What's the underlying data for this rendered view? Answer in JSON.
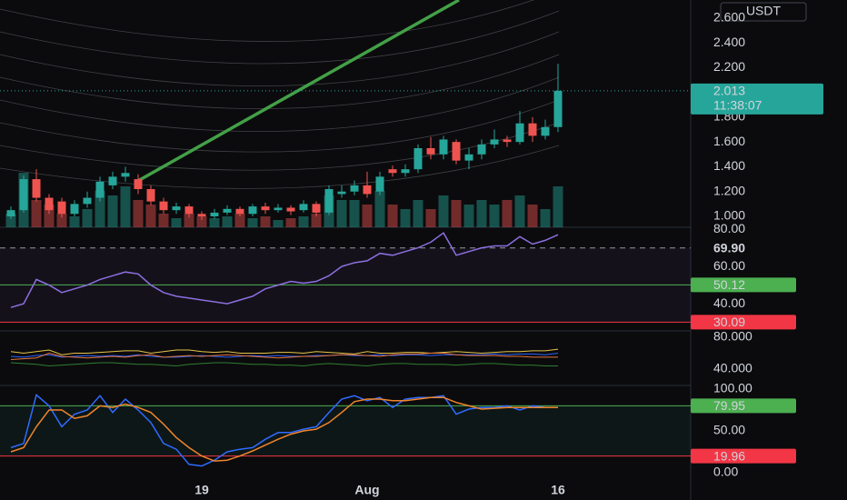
{
  "chart_data": [
    {
      "type": "candlestick",
      "currency": "USDT",
      "categories": [
        null,
        null,
        null,
        null,
        null,
        null,
        null,
        null,
        null,
        null,
        null,
        null,
        null,
        null,
        null,
        "19",
        null,
        null,
        null,
        null,
        null,
        null,
        null,
        null,
        null,
        null,
        null,
        null,
        "Aug",
        null,
        null,
        null,
        null,
        null,
        null,
        null,
        null,
        null,
        null,
        null,
        null,
        null,
        null,
        "16"
      ],
      "open": [
        1.0,
        1.05,
        1.3,
        1.15,
        1.12,
        1.02,
        1.1,
        1.15,
        1.25,
        1.32,
        1.3,
        1.22,
        1.12,
        1.05,
        1.08,
        1.02,
        1.0,
        1.03,
        1.06,
        1.02,
        1.08,
        1.05,
        1.07,
        1.05,
        1.1,
        1.03,
        1.18,
        1.2,
        1.25,
        1.2,
        1.38,
        1.35,
        1.38,
        1.55,
        1.5,
        1.6,
        1.45,
        1.5,
        1.58,
        1.62,
        1.6,
        1.75,
        1.65,
        1.72
      ],
      "high": [
        1.08,
        1.33,
        1.38,
        1.18,
        1.15,
        1.13,
        1.2,
        1.32,
        1.36,
        1.4,
        1.34,
        1.25,
        1.15,
        1.11,
        1.1,
        1.04,
        1.06,
        1.09,
        1.08,
        1.1,
        1.11,
        1.1,
        1.09,
        1.13,
        1.12,
        1.25,
        1.25,
        1.29,
        1.36,
        1.36,
        1.41,
        1.42,
        1.58,
        1.64,
        1.65,
        1.62,
        1.55,
        1.62,
        1.7,
        1.65,
        1.85,
        1.8,
        1.78,
        2.23
      ],
      "low": [
        0.98,
        1.03,
        1.12,
        1.02,
        0.99,
        1.0,
        1.07,
        1.12,
        1.22,
        1.28,
        1.18,
        1.09,
        1.02,
        1.02,
        0.99,
        0.97,
        0.98,
        1.01,
        1.0,
        1.0,
        1.02,
        1.03,
        1.01,
        1.03,
        1.0,
        1.01,
        1.15,
        1.17,
        1.15,
        1.17,
        1.32,
        1.32,
        1.35,
        1.46,
        1.46,
        1.42,
        1.38,
        1.46,
        1.55,
        1.56,
        1.58,
        1.6,
        1.62,
        1.68
      ],
      "close": [
        1.05,
        1.3,
        1.15,
        1.05,
        1.02,
        1.1,
        1.15,
        1.28,
        1.32,
        1.35,
        1.22,
        1.12,
        1.05,
        1.08,
        1.02,
        1.0,
        1.03,
        1.06,
        1.02,
        1.08,
        1.05,
        1.07,
        1.04,
        1.1,
        1.03,
        1.22,
        1.2,
        1.25,
        1.18,
        1.32,
        1.35,
        1.38,
        1.55,
        1.5,
        1.62,
        1.45,
        1.5,
        1.58,
        1.62,
        1.6,
        1.75,
        1.65,
        1.72,
        2.013
      ],
      "volume": [
        15,
        60,
        30,
        25,
        15,
        12,
        20,
        40,
        35,
        45,
        30,
        25,
        15,
        10,
        15,
        12,
        10,
        12,
        15,
        10,
        12,
        8,
        10,
        12,
        15,
        35,
        30,
        30,
        25,
        40,
        25,
        20,
        30,
        20,
        35,
        30,
        25,
        30,
        25,
        30,
        35,
        25,
        20,
        45
      ],
      "volume_lim": [
        0,
        100
      ],
      "up_color": "#26a69a",
      "down_color": "#ef5350",
      "ylim": [
        0.912,
        2.745
      ],
      "yticks": [
        {
          "value": 1.0,
          "label": "1.000"
        },
        {
          "value": 1.2,
          "label": "1.200"
        },
        {
          "value": 1.4,
          "label": "1.400"
        },
        {
          "value": 1.6,
          "label": "1.600"
        },
        {
          "value": 1.8,
          "label": "1.800"
        },
        {
          "value": 2.2,
          "label": "2.200"
        },
        {
          "value": 2.4,
          "label": "2.400"
        },
        {
          "value": 2.6,
          "label": "2.600"
        }
      ],
      "last_price": 2.013,
      "last_price_label": "2.013",
      "countdown": "11:38:07"
    },
    {
      "type": "line",
      "series": [
        {
          "color": "#8c6fe0",
          "values": [
            38,
            40,
            53,
            50,
            46,
            48,
            50,
            53,
            55,
            57,
            56,
            50,
            46,
            44,
            43,
            42,
            41,
            40,
            42,
            44,
            48,
            50,
            52,
            51,
            52,
            55,
            60,
            62,
            63,
            67,
            66,
            68,
            70,
            73,
            78,
            66,
            68,
            70,
            71,
            71,
            76,
            72,
            74,
            77
          ]
        }
      ],
      "ylim": [
        25.4,
        81
      ],
      "yticks": [
        {
          "value": 80,
          "label": "80.00"
        },
        {
          "value": 60,
          "label": "60.00"
        },
        {
          "value": 40,
          "label": "40.00"
        }
      ],
      "levels": [
        {
          "value": 69.9,
          "label": "69.90",
          "color": "#9598a1",
          "style": "dashed"
        },
        {
          "value": 50.12,
          "label": "50.12",
          "color": "#4caf50"
        },
        {
          "value": 30.09,
          "label": "30.09",
          "color": "#f23645"
        }
      ]
    },
    {
      "type": "line",
      "series": [
        {
          "color": "#e6c34a",
          "values": [
            62,
            60,
            62,
            64,
            58,
            60,
            60,
            61,
            62,
            63,
            63,
            60,
            62,
            64,
            64,
            62,
            61,
            62,
            60,
            60,
            60,
            61,
            61,
            60,
            62,
            61,
            60,
            59,
            62,
            60,
            60,
            61,
            61,
            60,
            61,
            62,
            61,
            60,
            61,
            62,
            62,
            63,
            63,
            65
          ]
        },
        {
          "color": "#2962ff",
          "values": [
            56,
            55,
            57,
            58,
            55,
            56,
            57,
            56,
            57,
            56,
            58,
            56,
            55,
            55,
            56,
            57,
            56,
            55,
            56,
            57,
            56,
            57,
            56,
            56,
            57,
            57,
            58,
            57,
            57,
            58,
            57,
            58,
            58,
            57,
            58,
            58,
            58,
            58,
            59,
            58,
            59,
            59,
            58,
            60
          ]
        },
        {
          "color": "#e57339",
          "values": [
            52,
            53,
            54,
            60,
            56,
            55,
            54,
            55,
            56,
            55,
            57,
            58,
            55,
            56,
            57,
            56,
            57,
            58,
            57,
            56,
            55,
            54,
            55,
            56,
            56,
            57,
            58,
            58,
            57,
            56,
            58,
            59,
            59,
            60,
            60,
            58,
            57,
            57,
            57,
            56,
            56,
            55,
            55,
            55
          ]
        },
        {
          "color": "#2e7d32",
          "values": [
            48,
            47,
            46,
            44,
            45,
            46,
            47,
            48,
            48,
            47,
            46,
            46,
            45,
            44,
            46,
            47,
            48,
            48,
            47,
            46,
            46,
            45,
            45,
            44,
            46,
            47,
            46,
            45,
            44,
            46,
            47,
            47,
            46,
            46,
            46,
            45,
            46,
            47,
            47,
            46,
            45,
            45,
            44,
            44
          ]
        }
      ],
      "ylim": [
        19.4,
        88
      ],
      "yticks": [
        {
          "value": 80,
          "label": "80.000"
        },
        {
          "value": 40,
          "label": "40.000"
        }
      ]
    },
    {
      "type": "line",
      "series": [
        {
          "color": "#2f6bff",
          "values": [
            30,
            35,
            93,
            80,
            55,
            70,
            75,
            92,
            72,
            88,
            75,
            60,
            35,
            28,
            10,
            8,
            15,
            25,
            28,
            30,
            40,
            48,
            48,
            52,
            55,
            72,
            88,
            92,
            86,
            90,
            78,
            88,
            90,
            90,
            92,
            70,
            76,
            78,
            78,
            80,
            75,
            80,
            78,
            78
          ]
        },
        {
          "color": "#f0852d",
          "values": [
            25,
            30,
            55,
            75,
            75,
            65,
            68,
            80,
            78,
            82,
            78,
            72,
            58,
            42,
            30,
            20,
            14,
            15,
            20,
            26,
            33,
            40,
            46,
            50,
            52,
            60,
            72,
            85,
            88,
            88,
            86,
            86,
            88,
            90,
            90,
            84,
            80,
            76,
            77,
            78,
            78,
            78,
            78,
            78
          ]
        }
      ],
      "ylim": [
        -10.9,
        104.3
      ],
      "yticks": [
        {
          "value": 100,
          "label": "100.00"
        },
        {
          "value": 50,
          "label": "50.00"
        },
        {
          "value": 0,
          "label": "0.00"
        }
      ],
      "levels": [
        {
          "value": 79.95,
          "label": "79.95",
          "color": "#4caf50"
        },
        {
          "value": 19.96,
          "label": "19.96",
          "color": "#f23645"
        }
      ]
    }
  ]
}
